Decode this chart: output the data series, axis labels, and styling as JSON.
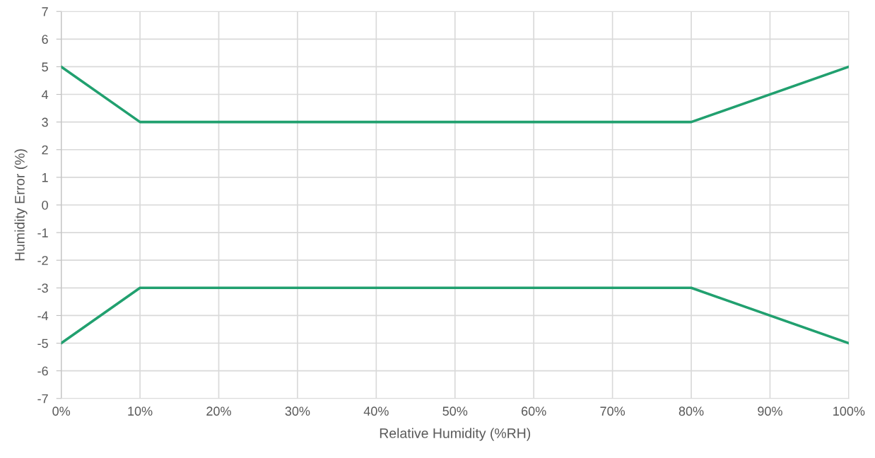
{
  "chart_data": {
    "type": "line",
    "xlabel": "Relative Humidity (%RH)",
    "ylabel": "Humidity Error (%)",
    "x": [
      0,
      10,
      80,
      100
    ],
    "series": [
      {
        "color": "#21a06f",
        "values": [
          5,
          3,
          3,
          5
        ]
      },
      {
        "color": "#21a06f",
        "values": [
          -5,
          -3,
          -3,
          -5
        ]
      }
    ],
    "xlim": [
      0,
      100
    ],
    "xticks": [
      {
        "value": 0,
        "label": "0%"
      },
      {
        "value": 10,
        "label": "10%"
      },
      {
        "value": 20,
        "label": "20%"
      },
      {
        "value": 30,
        "label": "30%"
      },
      {
        "value": 40,
        "label": "40%"
      },
      {
        "value": 50,
        "label": "50%"
      },
      {
        "value": 60,
        "label": "60%"
      },
      {
        "value": 70,
        "label": "70%"
      },
      {
        "value": 80,
        "label": "80%"
      },
      {
        "value": 90,
        "label": "90%"
      },
      {
        "value": 100,
        "label": "100%"
      }
    ],
    "ylim": [
      -7,
      7
    ],
    "yticks": [
      -7,
      -6,
      -5,
      -4,
      -3,
      -2,
      -1,
      0,
      1,
      2,
      3,
      4,
      5,
      6,
      7
    ],
    "grid": true
  }
}
